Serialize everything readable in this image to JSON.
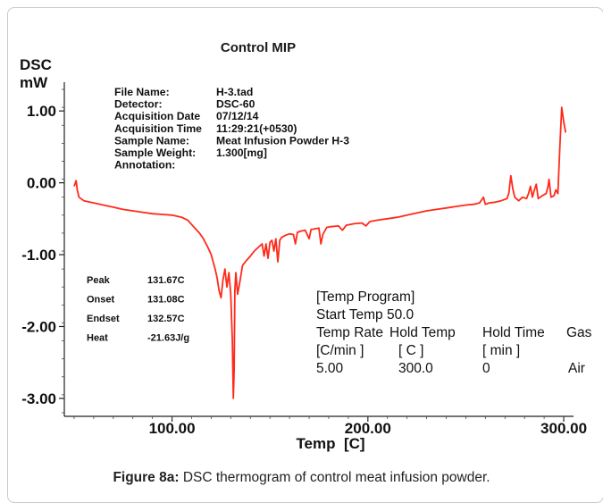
{
  "chart_data": {
    "type": "line",
    "title": "Control MIP",
    "ylabel_lines": [
      "DSC",
      "mW"
    ],
    "xlabel": "Temp  [C]",
    "xlim": [
      45,
      305
    ],
    "ylim": [
      -3.25,
      1.4
    ],
    "x_ticks": [
      {
        "value": 100,
        "label": "100.00"
      },
      {
        "value": 200,
        "label": "200.00"
      },
      {
        "value": 300,
        "label": "300.00"
      }
    ],
    "y_ticks": [
      {
        "value": 1,
        "label": "1.00"
      },
      {
        "value": 0,
        "label": "0.00"
      },
      {
        "value": -1,
        "label": "-1.00"
      },
      {
        "value": -2,
        "label": "-2.00"
      },
      {
        "value": -3,
        "label": "-3.00"
      }
    ],
    "line_color": "#ff2a1a",
    "series": [
      {
        "points": [
          [
            50,
            -0.05
          ],
          [
            51,
            0.03
          ],
          [
            51.6,
            -0.1
          ],
          [
            52.5,
            -0.2
          ],
          [
            55,
            -0.25
          ],
          [
            60,
            -0.28
          ],
          [
            65,
            -0.31
          ],
          [
            70,
            -0.34
          ],
          [
            75,
            -0.37
          ],
          [
            80,
            -0.39
          ],
          [
            85,
            -0.41
          ],
          [
            90,
            -0.43
          ],
          [
            95,
            -0.44
          ],
          [
            100,
            -0.45
          ],
          [
            105,
            -0.48
          ],
          [
            108,
            -0.52
          ],
          [
            110,
            -0.58
          ],
          [
            112,
            -0.64
          ],
          [
            114,
            -0.7
          ],
          [
            116,
            -0.78
          ],
          [
            118,
            -0.88
          ],
          [
            120,
            -1.0
          ],
          [
            121,
            -1.1
          ],
          [
            122,
            -1.2
          ],
          [
            123,
            -1.32
          ],
          [
            124,
            -1.5
          ],
          [
            125,
            -1.6
          ],
          [
            126,
            -1.35
          ],
          [
            127,
            -1.2
          ],
          [
            128,
            -1.45
          ],
          [
            129,
            -1.25
          ],
          [
            130,
            -1.55
          ],
          [
            130.8,
            -2.2
          ],
          [
            131.3,
            -3.0
          ],
          [
            131.7,
            -2.6
          ],
          [
            132.1,
            -1.5
          ],
          [
            132.6,
            -1.25
          ],
          [
            133.5,
            -1.55
          ],
          [
            134.5,
            -1.4
          ],
          [
            136,
            -1.15
          ],
          [
            138,
            -1.08
          ],
          [
            140,
            -1.02
          ],
          [
            142,
            -0.95
          ],
          [
            144,
            -0.9
          ],
          [
            146,
            -0.85
          ],
          [
            147,
            -1.02
          ],
          [
            148,
            -0.85
          ],
          [
            149,
            -1.05
          ],
          [
            150,
            -0.83
          ],
          [
            151,
            -0.8
          ],
          [
            152,
            -0.95
          ],
          [
            153,
            -0.78
          ],
          [
            154,
            -1.1
          ],
          [
            155,
            -0.8
          ],
          [
            156,
            -0.76
          ],
          [
            158,
            -0.73
          ],
          [
            160,
            -0.71
          ],
          [
            162,
            -0.72
          ],
          [
            163,
            -0.85
          ],
          [
            164,
            -0.69
          ],
          [
            166,
            -0.67
          ],
          [
            168,
            -0.66
          ],
          [
            170,
            -0.78
          ],
          [
            171,
            -0.65
          ],
          [
            173,
            -0.64
          ],
          [
            175,
            -0.63
          ],
          [
            176,
            -0.85
          ],
          [
            177,
            -0.72
          ],
          [
            179,
            -0.62
          ],
          [
            181,
            -0.61
          ],
          [
            185,
            -0.6
          ],
          [
            187,
            -0.66
          ],
          [
            189,
            -0.59
          ],
          [
            193,
            -0.57
          ],
          [
            197,
            -0.56
          ],
          [
            199,
            -0.6
          ],
          [
            201,
            -0.54
          ],
          [
            205,
            -0.52
          ],
          [
            210,
            -0.5
          ],
          [
            215,
            -0.48
          ],
          [
            220,
            -0.45
          ],
          [
            225,
            -0.42
          ],
          [
            230,
            -0.39
          ],
          [
            235,
            -0.37
          ],
          [
            240,
            -0.35
          ],
          [
            245,
            -0.33
          ],
          [
            250,
            -0.31
          ],
          [
            254,
            -0.3
          ],
          [
            257,
            -0.28
          ],
          [
            259,
            -0.2
          ],
          [
            260,
            -0.3
          ],
          [
            262,
            -0.28
          ],
          [
            265,
            -0.27
          ],
          [
            268,
            -0.25
          ],
          [
            271,
            -0.22
          ],
          [
            272,
            -0.14
          ],
          [
            273,
            0.1
          ],
          [
            274,
            -0.08
          ],
          [
            275,
            -0.2
          ],
          [
            277,
            -0.25
          ],
          [
            279,
            -0.2
          ],
          [
            281,
            -0.22
          ],
          [
            282,
            -0.15
          ],
          [
            283,
            -0.05
          ],
          [
            284,
            -0.2
          ],
          [
            285,
            -0.1
          ],
          [
            286,
            -0.02
          ],
          [
            287,
            -0.22
          ],
          [
            289,
            -0.18
          ],
          [
            291,
            -0.15
          ],
          [
            292,
            -0.05
          ],
          [
            292.5,
            0.05
          ],
          [
            293.5,
            -0.2
          ],
          [
            295,
            -0.18
          ],
          [
            296,
            -0.1
          ],
          [
            297,
            -0.15
          ],
          [
            298,
            0.5
          ],
          [
            299,
            1.05
          ],
          [
            300,
            0.85
          ],
          [
            301,
            0.7
          ]
        ]
      }
    ],
    "file_info": [
      {
        "label": "File Name:",
        "value": "H-3.tad"
      },
      {
        "label": "Detector:",
        "value": "DSC-60"
      },
      {
        "label": "Acquisition Date",
        "value": "07/12/14"
      },
      {
        "label": "Acquisition Time",
        "value": "11:29:21(+0530)"
      },
      {
        "label": "Sample Name:",
        "value": "Meat Infusion Powder H-3"
      },
      {
        "label": "Sample Weight:",
        "value": "1.300[mg]"
      },
      {
        "label": "Annotation:",
        "value": ""
      }
    ],
    "peak_info": [
      {
        "label": "Peak",
        "value": "131.67C"
      },
      {
        "label": "Onset",
        "value": "131.08C"
      },
      {
        "label": "Endset",
        "value": "132.57C"
      },
      {
        "label": "Heat",
        "value": "-21.63J/g"
      }
    ],
    "temp_program": {
      "title": "[Temp Program]",
      "start": "Start Temp 50.0",
      "headers": [
        "Temp Rate",
        "Hold Temp",
        "Hold Time",
        "Gas"
      ],
      "units": [
        "[C/min ]",
        "[  C  ]",
        "[  min  ]",
        ""
      ],
      "rows": [
        [
          "5.00",
          "300.0",
          "0",
          "Air"
        ]
      ]
    }
  },
  "caption": {
    "label": "Figure 8a:",
    "text": " DSC thermogram of control meat infusion powder."
  }
}
